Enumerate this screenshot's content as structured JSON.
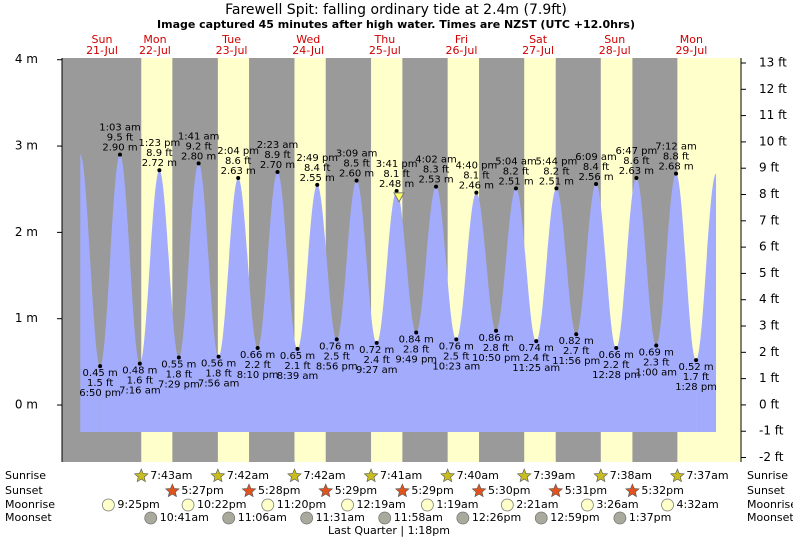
{
  "chart_data": {
    "type": "tide",
    "title": "Farewell Spit: falling  ordinary tide at 2.4m (7.9ft)",
    "subtitle": "Image captured 45 minutes after high water. Times are NZST (UTC +12.0hrs)",
    "current_level_m": 2.4,
    "ylim": [
      -0.66,
      4.02
    ],
    "yticks": [
      {
        "value": 0,
        "label": "0 m"
      },
      {
        "value": 1,
        "label": "1 m"
      },
      {
        "value": 2,
        "label": "2 m"
      },
      {
        "value": 3,
        "label": "3 m"
      },
      {
        "value": 4,
        "label": "4 m"
      }
    ],
    "y2lim": [
      -2.17,
      13.19
    ],
    "y2ticks": [
      {
        "value": -2,
        "label": "-2 ft"
      },
      {
        "value": -1,
        "label": "-1 ft"
      },
      {
        "value": 0,
        "label": "0 ft"
      },
      {
        "value": 1,
        "label": "1 ft"
      },
      {
        "value": 2,
        "label": "2 ft"
      },
      {
        "value": 3,
        "label": "3 ft"
      },
      {
        "value": 4,
        "label": "4 ft"
      },
      {
        "value": 5,
        "label": "5 ft"
      },
      {
        "value": 6,
        "label": "6 ft"
      },
      {
        "value": 7,
        "label": "7 ft"
      },
      {
        "value": 8,
        "label": "8 ft"
      },
      {
        "value": 9,
        "label": "9 ft"
      },
      {
        "value": 10,
        "label": "10 ft"
      },
      {
        "value": 11,
        "label": "11 ft"
      },
      {
        "value": 12,
        "label": "12 ft"
      },
      {
        "value": 13,
        "label": "13 ft"
      }
    ],
    "row_labels": {
      "sunrise": "Sunrise",
      "sunset": "Sunset",
      "moonrise": "Moonrise",
      "moonset": "Moonset"
    },
    "colors": {
      "tide": "#a3acfc",
      "day": "#ffffcc",
      "night": "#9a9a9a",
      "sunrise": "#c8bd1e",
      "sunset": "#e0521e",
      "moonrise": "#ffffc8",
      "moonset": "#aaaa9c"
    },
    "days": [
      {
        "name": "Sun",
        "date": "21-Jul",
        "moonrise": "9:25pm",
        "tides": [
          {
            "time": "6:50 pm",
            "height": 0.45,
            "height_label": "0.45 m",
            "feet": "1.5 ft"
          }
        ]
      },
      {
        "name": "Mon",
        "date": "22-Jul",
        "sunrise": "7:43am",
        "sunset": "5:27pm",
        "moonrise": "10:22pm",
        "moonset": "10:41am",
        "tides": [
          {
            "time": "1:03 am",
            "height": 2.9,
            "height_label": "2.90 m",
            "feet": "9.5 ft"
          },
          {
            "time": "7:16 am",
            "height": 0.48,
            "height_label": "0.48 m",
            "feet": "1.6 ft"
          },
          {
            "time": "1:23 pm",
            "height": 2.72,
            "height_label": "2.72 m",
            "feet": "8.9 ft"
          },
          {
            "time": "7:29 pm",
            "height": 0.55,
            "height_label": "0.55 m",
            "feet": "1.8 ft"
          }
        ]
      },
      {
        "name": "Tue",
        "date": "23-Jul",
        "sunrise": "7:42am",
        "sunset": "5:28pm",
        "moonrise": "11:20pm",
        "moonset": "11:06am",
        "tides": [
          {
            "time": "1:41 am",
            "height": 2.8,
            "height_label": "2.80 m",
            "feet": "9.2 ft"
          },
          {
            "time": "7:56 am",
            "height": 0.56,
            "height_label": "0.56 m",
            "feet": "1.8 ft"
          },
          {
            "time": "2:04 pm",
            "height": 2.63,
            "height_label": "2.63 m",
            "feet": "8.6 ft"
          },
          {
            "time": "8:10 pm",
            "height": 0.66,
            "height_label": "0.66 m",
            "feet": "2.2 ft"
          }
        ]
      },
      {
        "name": "Wed",
        "date": "24-Jul",
        "sunrise": "7:42am",
        "sunset": "5:29pm",
        "moonset": "11:31am",
        "tides": [
          {
            "time": "2:23 am",
            "height": 2.7,
            "height_label": "2.70 m",
            "feet": "8.9 ft"
          },
          {
            "time": "8:39 am",
            "height": 0.65,
            "height_label": "0.65 m",
            "feet": "2.1 ft"
          },
          {
            "time": "2:49 pm",
            "height": 2.55,
            "height_label": "2.55 m",
            "feet": "8.4 ft"
          },
          {
            "time": "8:56 pm",
            "height": 0.76,
            "height_label": "0.76 m",
            "feet": "2.5 ft"
          }
        ]
      },
      {
        "name": "Thu",
        "date": "25-Jul",
        "sunrise": "7:41am",
        "sunset": "5:29pm",
        "moonrise": "12:19am",
        "moonset": "11:58am",
        "phase": "Last Quarter | 1:18pm",
        "tides": [
          {
            "time": "3:09 am",
            "height": 2.6,
            "height_label": "2.60 m",
            "feet": "8.5 ft"
          },
          {
            "time": "9:27 am",
            "height": 0.72,
            "height_label": "0.72 m",
            "feet": "2.4 ft"
          },
          {
            "time": "3:41 pm",
            "height": 2.48,
            "height_label": "2.48 m",
            "feet": "8.1 ft"
          },
          {
            "time": "9:49 pm",
            "height": 0.84,
            "height_label": "0.84 m",
            "feet": "2.8 ft"
          }
        ]
      },
      {
        "name": "Fri",
        "date": "26-Jul",
        "sunrise": "7:40am",
        "sunset": "5:30pm",
        "moonrise": "1:19am",
        "moonset": "12:26pm",
        "tides": [
          {
            "time": "4:02 am",
            "height": 2.53,
            "height_label": "2.53 m",
            "feet": "8.3 ft"
          },
          {
            "time": "10:23 am",
            "height": 0.76,
            "height_label": "0.76 m",
            "feet": "2.5 ft"
          },
          {
            "time": "4:40 pm",
            "height": 2.46,
            "height_label": "2.46 m",
            "feet": "8.1 ft"
          },
          {
            "time": "10:50 pm",
            "height": 0.86,
            "height_label": "0.86 m",
            "feet": "2.8 ft"
          }
        ]
      },
      {
        "name": "Sat",
        "date": "27-Jul",
        "sunrise": "7:39am",
        "sunset": "5:31pm",
        "moonrise": "2:21am",
        "moonset": "12:59pm",
        "tides": [
          {
            "time": "5:04 am",
            "height": 2.51,
            "height_label": "2.51 m",
            "feet": "8.2 ft"
          },
          {
            "time": "11:25 am",
            "height": 0.74,
            "height_label": "0.74 m",
            "feet": "2.4 ft"
          },
          {
            "time": "5:44 pm",
            "height": 2.51,
            "height_label": "2.51 m",
            "feet": "8.2 ft"
          },
          {
            "time": "11:56 pm",
            "height": 0.82,
            "height_label": "0.82 m",
            "feet": "2.7 ft"
          }
        ]
      },
      {
        "name": "Sun",
        "date": "28-Jul",
        "sunrise": "7:38am",
        "sunset": "5:32pm",
        "moonrise": "3:26am",
        "moonset": "1:37pm",
        "tides": [
          {
            "time": "6:09 am",
            "height": 2.56,
            "height_label": "2.56 m",
            "feet": "8.4 ft"
          },
          {
            "time": "12:28 pm",
            "height": 0.66,
            "height_label": "0.66 m",
            "feet": "2.2 ft"
          },
          {
            "time": "6:47 pm",
            "height": 2.63,
            "height_label": "2.63 m",
            "feet": "8.6 ft"
          }
        ]
      },
      {
        "name": "Mon",
        "date": "29-Jul",
        "sunrise": "7:37am",
        "moonrise": "4:32am",
        "tides": [
          {
            "time": "1:00 am",
            "height": 0.69,
            "height_label": "0.69 m",
            "feet": "2.3 ft"
          },
          {
            "time": "7:12 am",
            "height": 2.68,
            "height_label": "2.68 m",
            "feet": "8.8 ft"
          },
          {
            "time": "1:28 pm",
            "height": 0.52,
            "height_label": "0.52 m",
            "feet": "1.7 ft"
          }
        ]
      }
    ]
  }
}
